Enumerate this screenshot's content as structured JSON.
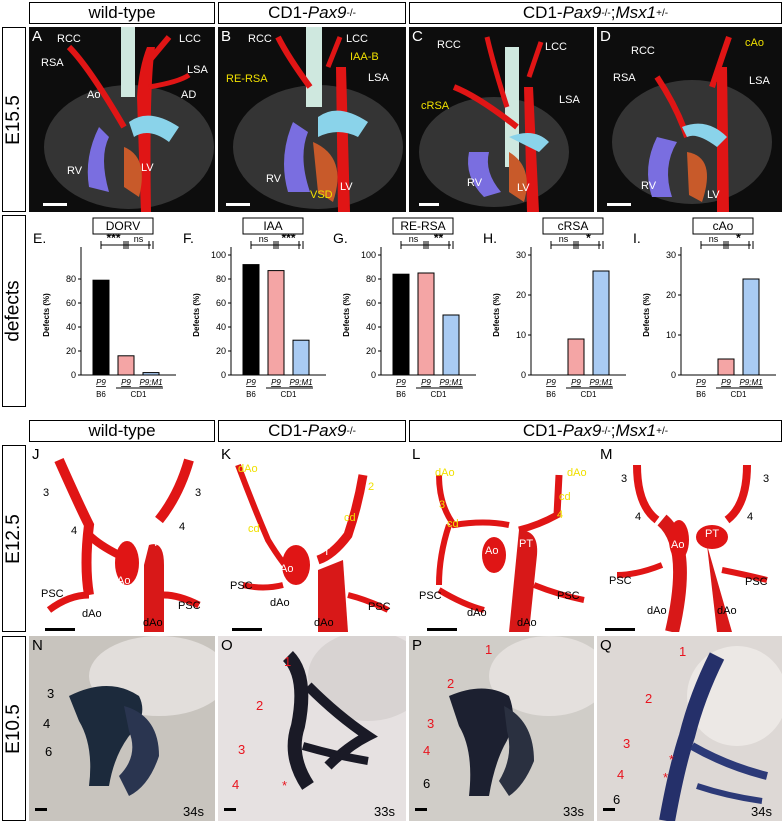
{
  "headers": {
    "wt": "wild-type",
    "pax9_pre": "CD1-",
    "pax9_gene": "Pax9",
    "pax9_sup": "-/-",
    "msx_pre": "CD1-",
    "msx_gene1": "Pax9",
    "msx_sup1": "-/-",
    "msx_sep": ";",
    "msx_gene2": "Msx1",
    "msx_sup2": "+/-"
  },
  "row_labels": {
    "e155": "E15.5",
    "defects": "defects",
    "e125": "E12.5",
    "e105": "E10.5"
  },
  "panels_top": {
    "A": {
      "letter": "A",
      "labels": [
        "RCC",
        "LCC",
        "RSA",
        "LSA",
        "Ao",
        "AD",
        "RV",
        "LV"
      ]
    },
    "B": {
      "letter": "B",
      "labels": [
        "RCC",
        "LCC",
        "RE-RSA",
        "IAA-B",
        "LSA",
        "RV",
        "VSD",
        "LV"
      ]
    },
    "C": {
      "letter": "C",
      "labels": [
        "RCC",
        "LCC",
        "cRSA",
        "LSA",
        "RV",
        "LV"
      ]
    },
    "D": {
      "letter": "D",
      "labels": [
        "RCC",
        "cAo",
        "RSA",
        "LSA",
        "RV",
        "LV"
      ]
    }
  },
  "panels_mid": {
    "J": {
      "letter": "J",
      "labels": [
        "3",
        "3",
        "4",
        "4",
        "PT",
        "Ao",
        "PSC",
        "PSC",
        "dAo",
        "dAo"
      ]
    },
    "K": {
      "letter": "K",
      "labels": [
        "dAo",
        "2",
        "cd",
        "cd",
        "PT",
        "Ao",
        "PSC",
        "dAo",
        "PSC",
        "dAo"
      ]
    },
    "L": {
      "letter": "L",
      "labels": [
        "dAo",
        "dAo",
        "cd",
        "3",
        "cd",
        "4",
        "PT",
        "Ao",
        "PSC",
        "PSC",
        "dAo",
        "dAo"
      ]
    },
    "M": {
      "letter": "M",
      "labels": [
        "3",
        "3",
        "4",
        "4",
        "PT",
        "Ao",
        "PSC",
        "PSC",
        "dAo",
        "dAo"
      ]
    }
  },
  "panels_bot": {
    "N": {
      "letter": "N",
      "labels": [
        "3",
        "4",
        "6"
      ],
      "somites": "34s"
    },
    "O": {
      "letter": "O",
      "labels": [
        "1",
        "2",
        "3",
        "4",
        "*"
      ],
      "somites": "33s"
    },
    "P": {
      "letter": "P",
      "labels": [
        "1",
        "2",
        "3",
        "4",
        "6"
      ],
      "somites": "33s"
    },
    "Q": {
      "letter": "Q",
      "labels": [
        "1",
        "2",
        "3",
        "4",
        "*",
        "*",
        "6"
      ],
      "somites": "34s"
    }
  },
  "ylabel": "Defects (%)",
  "group_labels": {
    "g1": "B6",
    "g2": "CD1"
  },
  "chart_data": [
    {
      "letter": "E.",
      "type": "bar",
      "title": "DORV",
      "categories": [
        "P9",
        "P9",
        "P9;M1"
      ],
      "values": [
        79,
        16,
        2
      ],
      "ylim": [
        0,
        100
      ],
      "ticks": [
        0,
        20,
        40,
        60,
        80
      ],
      "colors": [
        "#000000",
        "#f4a5a5",
        "#a9cbf3"
      ],
      "sig": [
        "***",
        "ns"
      ]
    },
    {
      "letter": "F.",
      "type": "bar",
      "title": "IAA",
      "categories": [
        "P9",
        "P9",
        "P9;M1"
      ],
      "values": [
        92,
        87,
        29
      ],
      "ylim": [
        0,
        100
      ],
      "ticks": [
        0,
        20,
        40,
        60,
        80,
        100
      ],
      "colors": [
        "#000000",
        "#f4a5a5",
        "#a9cbf3"
      ],
      "sig": [
        "ns",
        "***"
      ]
    },
    {
      "letter": "G.",
      "type": "bar",
      "title": "RE-RSA",
      "categories": [
        "P9",
        "P9",
        "P9;M1"
      ],
      "values": [
        84,
        85,
        50
      ],
      "ylim": [
        0,
        100
      ],
      "ticks": [
        0,
        20,
        40,
        60,
        80,
        100
      ],
      "colors": [
        "#000000",
        "#f4a5a5",
        "#a9cbf3"
      ],
      "sig": [
        "ns",
        "**"
      ]
    },
    {
      "letter": "H.",
      "type": "bar",
      "title": "cRSA",
      "categories": [
        "P9",
        "P9",
        "P9;M1"
      ],
      "values": [
        0,
        9,
        26
      ],
      "ylim": [
        0,
        30
      ],
      "ticks": [
        0,
        10,
        20,
        30
      ],
      "colors": [
        "#000000",
        "#f4a5a5",
        "#a9cbf3"
      ],
      "sig": [
        "ns",
        "*"
      ]
    },
    {
      "letter": "I.",
      "type": "bar",
      "title": "cAo",
      "categories": [
        "P9",
        "P9",
        "P9;M1"
      ],
      "values": [
        0,
        4,
        24
      ],
      "ylim": [
        0,
        30
      ],
      "ticks": [
        0,
        10,
        20,
        30
      ],
      "colors": [
        "#000000",
        "#f4a5a5",
        "#a9cbf3"
      ],
      "sig": [
        "ns",
        "*"
      ]
    }
  ]
}
